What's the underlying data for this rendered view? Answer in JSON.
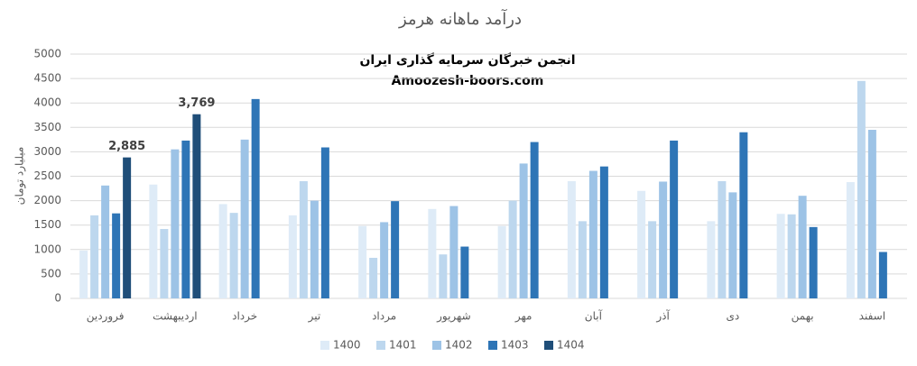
{
  "chart_data": {
    "type": "bar",
    "title": "درآمد ماهانه هرمز",
    "annotations": [
      "انجمن خبرگان سرمایه گذاری ایران",
      "Amoozesh-boors.com"
    ],
    "y_label": "میلیارد تومان",
    "categories": [
      "فروردین",
      "اردیبهشت",
      "خرداد",
      "تیر",
      "مرداد",
      "شهریور",
      "مهر",
      "آبان",
      "آذر",
      "دی",
      "بهمن",
      "اسفند"
    ],
    "series": [
      {
        "name": "1400",
        "color": "#deebf7",
        "values": [
          980,
          2330,
          1930,
          1700,
          1480,
          1830,
          1480,
          2400,
          2200,
          1580,
          1730,
          2380
        ]
      },
      {
        "name": "1401",
        "color": "#bdd7ee",
        "values": [
          1700,
          1420,
          1750,
          2400,
          830,
          900,
          2000,
          1580,
          1580,
          2400,
          1720,
          4450
        ]
      },
      {
        "name": "1402",
        "color": "#9dc3e6",
        "values": [
          2310,
          3050,
          3250,
          2000,
          1560,
          1890,
          2760,
          2610,
          2390,
          2170,
          2100,
          3450
        ]
      },
      {
        "name": "1403",
        "color": "#2e75b6",
        "values": [
          1740,
          3230,
          4080,
          3090,
          1990,
          1060,
          3200,
          2700,
          3230,
          3400,
          1460,
          950
        ]
      },
      {
        "name": "1404",
        "color": "#1f4e79",
        "values": [
          2885,
          3769,
          null,
          null,
          null,
          null,
          null,
          null,
          null,
          null,
          null,
          null
        ],
        "value_labels": [
          "2,885",
          "3,769",
          null,
          null,
          null,
          null,
          null,
          null,
          null,
          null,
          null,
          null
        ]
      }
    ],
    "ylim": [
      0,
      5000
    ],
    "yticks": [
      0,
      500,
      1000,
      1500,
      2000,
      2500,
      3000,
      3500,
      4000,
      4500,
      5000
    ],
    "grid": true,
    "legend": "bottom"
  }
}
